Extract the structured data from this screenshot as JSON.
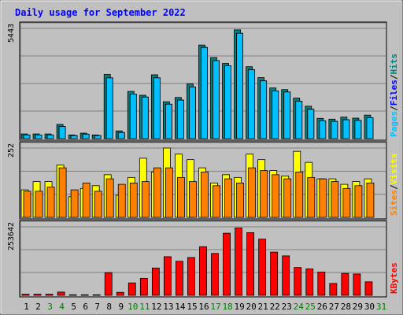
{
  "chart_data": {
    "type": "bar",
    "title": "Daily usage for September 2022",
    "categories": [
      "1",
      "2",
      "3",
      "4",
      "5",
      "6",
      "7",
      "8",
      "9",
      "10",
      "11",
      "12",
      "13",
      "14",
      "15",
      "16",
      "17",
      "18",
      "19",
      "20",
      "21",
      "22",
      "23",
      "24",
      "25",
      "26",
      "27",
      "28",
      "29",
      "30",
      "31"
    ],
    "weekend_days": [
      "3",
      "4",
      "10",
      "11",
      "17",
      "18",
      "24",
      "25",
      "31"
    ],
    "panels": [
      {
        "id": "hits-files-pages",
        "ylim": [
          0,
          5443
        ],
        "max_label": "5443",
        "side_label": [
          {
            "text": "Pages",
            "color": "#00c0ff"
          },
          {
            "text": "/",
            "color": "#000000"
          },
          {
            "text": "Files",
            "color": "#0000ff"
          },
          {
            "text": "/",
            "color": "#000000"
          },
          {
            "text": "Hits",
            "color": "#008080"
          }
        ],
        "series": [
          {
            "name": "Hits",
            "color": "#008080",
            "values": [
              230,
              230,
              230,
              700,
              180,
              270,
              180,
              3170,
              380,
              2330,
              2140,
              3150,
              1820,
              2030,
              2700,
              4620,
              4000,
              3710,
              5370,
              3550,
              3010,
              2500,
              2420,
              2000,
              1600,
              1000,
              960,
              1060,
              1010,
              1160,
              0
            ]
          },
          {
            "name": "Files",
            "color": "#0000ff",
            "values": [
              180,
              180,
              180,
              600,
              150,
              220,
              150,
              3000,
              300,
              2200,
              2050,
              3000,
              1700,
              1900,
              2550,
              4500,
              3850,
              3600,
              5200,
              3400,
              2850,
              2350,
              2300,
              1850,
              1450,
              880,
              850,
              930,
              900,
              1030,
              0
            ]
          },
          {
            "name": "Pages",
            "color": "#00c0ff",
            "values": [
              180,
              180,
              180,
              600,
              150,
              220,
              150,
              3000,
              300,
              2200,
              2050,
              3000,
              1700,
              1900,
              2550,
              4500,
              3850,
              3600,
              5200,
              3400,
              2850,
              2350,
              2300,
              1850,
              1450,
              880,
              850,
              930,
              900,
              1030,
              0
            ]
          }
        ]
      },
      {
        "id": "visits-sites",
        "ylim": [
          0,
          252
        ],
        "max_label": "252",
        "side_label": [
          {
            "text": "Sites",
            "color": "#ff8000"
          },
          {
            "text": "/",
            "color": "#000000"
          },
          {
            "text": "Visits",
            "color": "#ffff00"
          }
        ],
        "series": [
          {
            "name": "Visits",
            "color": "#ffff00",
            "values": [
              100,
              130,
              130,
              190,
              75,
              105,
              115,
              155,
              80,
              145,
              215,
              165,
              257,
              230,
              210,
              180,
              125,
              155,
              145,
              230,
              210,
              170,
              150,
              240,
              200,
              140,
              140,
              120,
              130,
              140,
              0
            ]
          },
          {
            "name": "Sites",
            "color": "#ff8000",
            "values": [
              95,
              95,
              110,
              180,
              100,
              125,
              95,
              140,
              120,
              125,
              130,
              180,
              180,
              145,
              130,
              165,
              115,
              140,
              125,
              180,
              170,
              155,
              140,
              165,
              145,
              140,
              130,
              105,
              115,
              125,
              0
            ]
          }
        ]
      },
      {
        "id": "kbytes",
        "ylim": [
          0,
          253642
        ],
        "max_label": "253642",
        "side_label": [
          {
            "text": "KBytes",
            "color": "#ff0000"
          }
        ],
        "series": [
          {
            "name": "KBytes",
            "color": "#ff0000",
            "values": [
              4000,
              4000,
              4000,
              12000,
              2000,
              2000,
              2000,
              84000,
              11000,
              46000,
              63000,
              101000,
              143000,
              126000,
              140000,
              180000,
              155000,
              230000,
              249000,
              232000,
              208000,
              160000,
              146000,
              103000,
              98000,
              86000,
              44000,
              81000,
              79000,
              50000,
              0
            ]
          }
        ]
      }
    ],
    "colors": {
      "background": "#c0c0c0",
      "plot_area": "#c0c0c0",
      "gridline": "#808080",
      "title": "#0000ff",
      "day_normal": "#000000",
      "day_weekend": "#008000"
    }
  }
}
